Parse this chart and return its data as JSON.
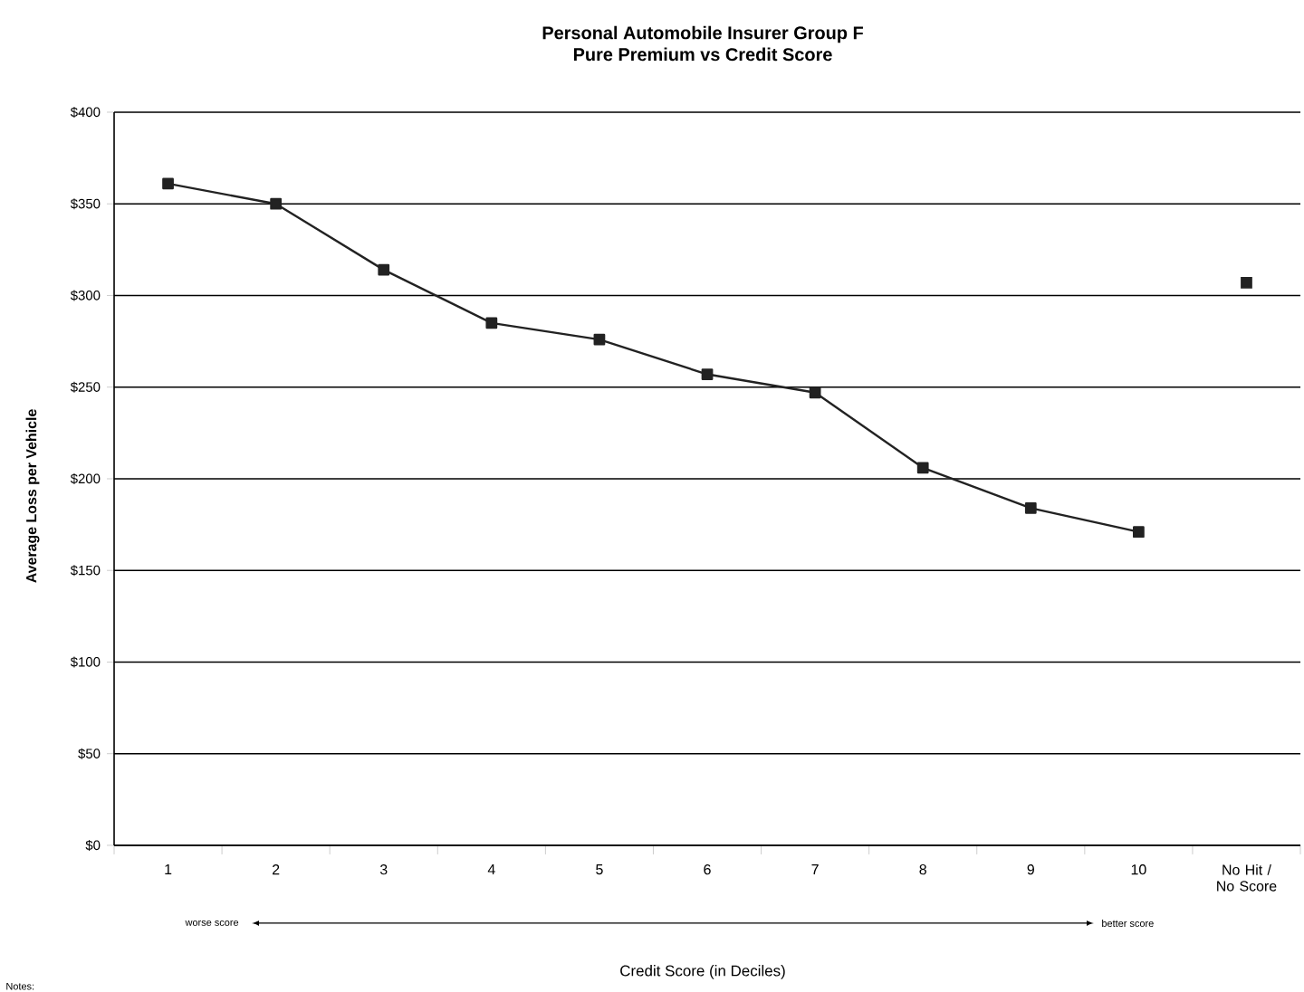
{
  "chart_data": {
    "type": "line",
    "title": "Personal Automobile Insurer Group F",
    "subtitle": "Pure Premium vs Credit Score",
    "xlabel": "Credit Score (in Deciles)",
    "ylabel": "Average Loss per Vehicle",
    "categories": [
      "1",
      "2",
      "3",
      "4",
      "5",
      "6",
      "7",
      "8",
      "9",
      "10",
      "No Hit / No Score"
    ],
    "series": [
      {
        "color": "#222222",
        "values": [
          361,
          350,
          314,
          285,
          276,
          257,
          247,
          206,
          184,
          171,
          null
        ]
      },
      {
        "type": "scatter",
        "color": "#222222",
        "values": [
          null,
          null,
          null,
          null,
          null,
          null,
          null,
          null,
          null,
          null,
          307
        ]
      }
    ],
    "ylim": [
      0,
      400
    ],
    "yticks": [
      {
        "value": 0,
        "label": "$0"
      },
      {
        "value": 50,
        "label": "$50"
      },
      {
        "value": 100,
        "label": "$100"
      },
      {
        "value": 150,
        "label": "$150"
      },
      {
        "value": 200,
        "label": "$200"
      },
      {
        "value": 250,
        "label": "$250"
      },
      {
        "value": 300,
        "label": "$300"
      },
      {
        "value": 350,
        "label": "$350"
      },
      {
        "value": 400,
        "label": "$400"
      }
    ],
    "grid": "y",
    "marker": "square",
    "line_style": "solid",
    "annotations": [
      "worse score",
      "better score",
      "Notes:"
    ]
  }
}
